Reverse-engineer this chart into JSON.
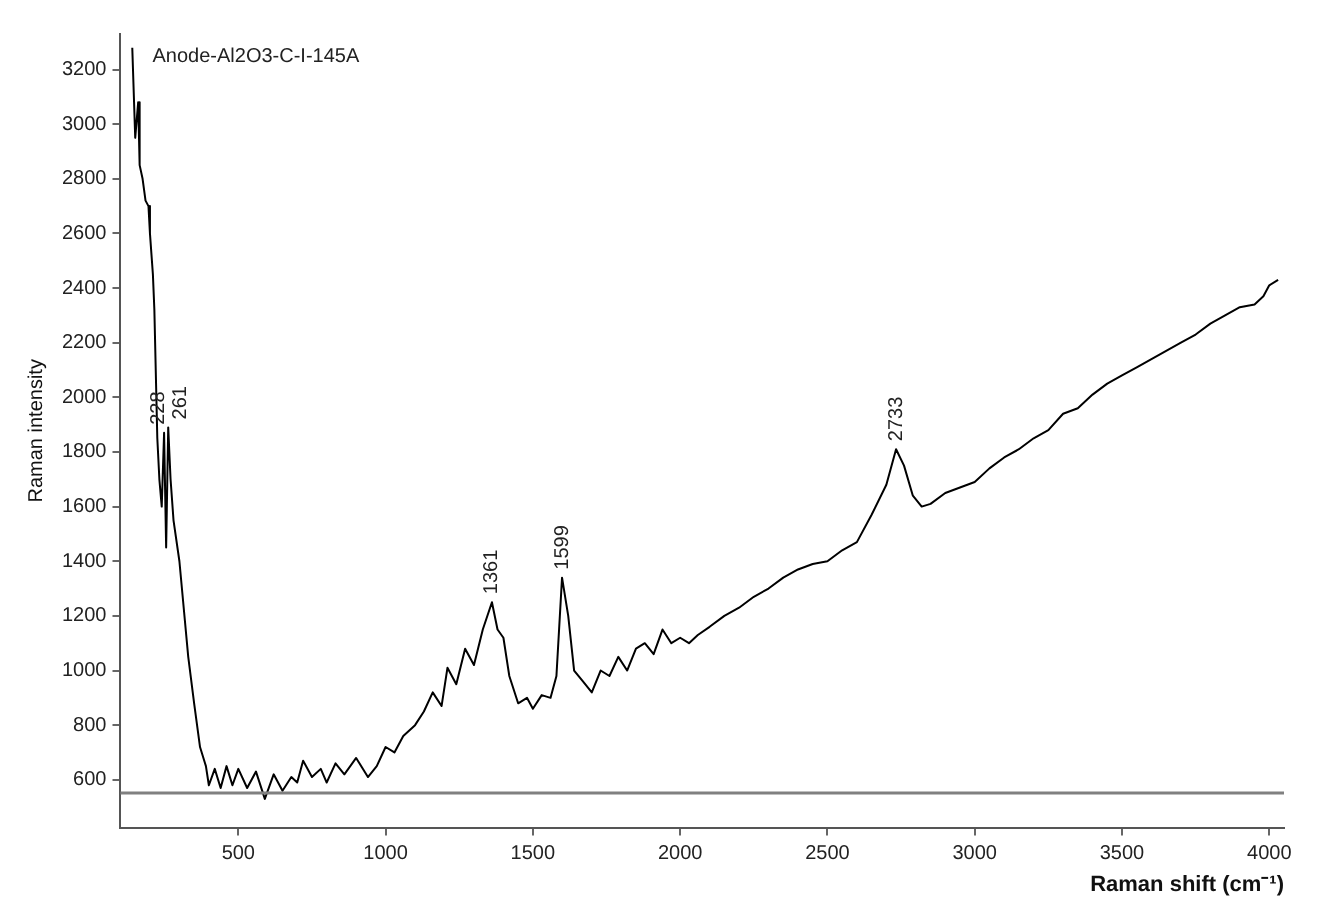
{
  "chart_data": {
    "type": "line",
    "xlabel": "Raman shift (cm⁻¹)",
    "ylabel": "Raman intensity",
    "annotations": [
      "Anode-Al2O3-C-I-145A",
      {
        "text": "228",
        "x": 228,
        "y": 1870
      },
      {
        "text": "261",
        "x": 261,
        "y": 1890
      },
      {
        "text": "1361",
        "x": 1361,
        "y": 1250
      },
      {
        "text": "1599",
        "x": 1599,
        "y": 1340
      },
      {
        "text": "2733",
        "x": 2733,
        "y": 1810
      }
    ],
    "xlim": [
      100,
      4050
    ],
    "xticks": [
      500,
      1000,
      1500,
      2000,
      2500,
      3000,
      3500,
      4000
    ],
    "ylim": [
      425,
      3330
    ],
    "yticks": [
      600,
      800,
      1000,
      1200,
      1400,
      1600,
      1800,
      2000,
      2200,
      2400,
      2600,
      2800,
      3000,
      3200
    ],
    "grid": false,
    "legend": false,
    "marker": "none",
    "line_style": "solid",
    "ref_lines": [
      {
        "axis": "y",
        "value": 552,
        "color": "#808080"
      }
    ],
    "series": [
      {
        "color": "#000000",
        "x": [
          140,
          150,
          160,
          165,
          175,
          185,
          195,
          200,
          210,
          215,
          225,
          232,
          240,
          248,
          255,
          262,
          270,
          280,
          300,
          330,
          350,
          370,
          390,
          400,
          420,
          440,
          460,
          480,
          500,
          530,
          560,
          590,
          620,
          650,
          680,
          700,
          720,
          750,
          780,
          800,
          830,
          860,
          900,
          940,
          970,
          1000,
          1030,
          1060,
          1100,
          1130,
          1160,
          1190,
          1210,
          1240,
          1270,
          1300,
          1330,
          1361,
          1380,
          1400,
          1420,
          1450,
          1480,
          1500,
          1530,
          1560,
          1580,
          1599,
          1620,
          1640,
          1670,
          1700,
          1730,
          1760,
          1790,
          1820,
          1850,
          1880,
          1910,
          1940,
          1970,
          2000,
          2030,
          2060,
          2100,
          2150,
          2200,
          2250,
          2300,
          2350,
          2400,
          2450,
          2500,
          2550,
          2600,
          2650,
          2700,
          2733,
          2760,
          2790,
          2820,
          2850,
          2900,
          2950,
          3000,
          3050,
          3100,
          3150,
          3200,
          3250,
          3300,
          3350,
          3400,
          3450,
          3500,
          3550,
          3600,
          3650,
          3700,
          3750,
          3800,
          3850,
          3900,
          3950,
          3980,
          4000,
          4030
        ],
        "values": [
          3280,
          2950,
          3080,
          2850,
          2800,
          2720,
          2700,
          2600,
          2450,
          2320,
          1850,
          1700,
          1600,
          1870,
          1450,
          1890,
          1700,
          1550,
          1400,
          1050,
          880,
          720,
          650,
          580,
          640,
          570,
          650,
          580,
          640,
          570,
          630,
          530,
          620,
          560,
          610,
          590,
          670,
          610,
          640,
          590,
          660,
          620,
          680,
          610,
          650,
          720,
          700,
          760,
          800,
          850,
          920,
          870,
          1010,
          950,
          1080,
          1020,
          1150,
          1250,
          1150,
          1120,
          980,
          880,
          900,
          860,
          910,
          900,
          980,
          1340,
          1200,
          1000,
          960,
          920,
          1000,
          980,
          1050,
          1000,
          1080,
          1100,
          1060,
          1150,
          1100,
          1120,
          1100,
          1130,
          1160,
          1200,
          1230,
          1270,
          1300,
          1340,
          1370,
          1390,
          1400,
          1440,
          1470,
          1570,
          1680,
          1810,
          1750,
          1640,
          1600,
          1610,
          1650,
          1670,
          1690,
          1740,
          1780,
          1810,
          1850,
          1880,
          1940,
          1960,
          2010,
          2050,
          2080,
          2110,
          2140,
          2170,
          2200,
          2230,
          2270,
          2300,
          2330,
          2340,
          2370,
          2410,
          2430
        ]
      }
    ]
  }
}
